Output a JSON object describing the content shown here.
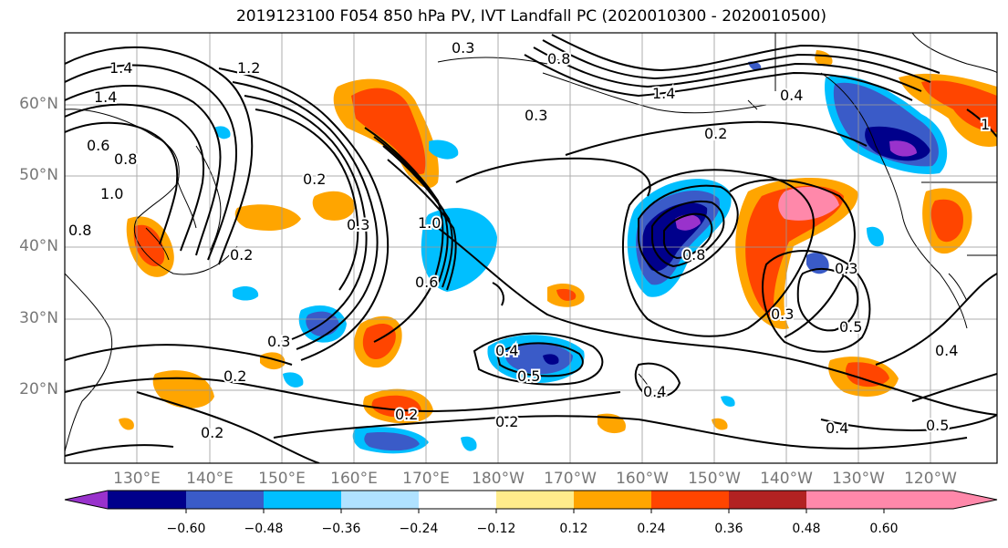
{
  "title": "2019123100 F054 850 hPa PV, IVT Landfall PC (2020010300 - 2020010500)",
  "map": {
    "lat_labels": [
      "60°N",
      "50°N",
      "40°N",
      "30°N",
      "20°N"
    ],
    "lon_labels": [
      "130°E",
      "140°E",
      "150°E",
      "160°E",
      "170°E",
      "180°W",
      "170°W",
      "160°W",
      "150°W",
      "140°W",
      "130°W",
      "120°W"
    ],
    "contour_labels": [
      "0.3",
      "1.2",
      "1.4",
      "1.4",
      "0.6",
      "0.8",
      "1.0",
      "0.8",
      "0.2",
      "0.3",
      "0.2",
      "1.0",
      "0.6",
      "0.3",
      "0.2",
      "0.8",
      "0.4",
      "1.4",
      "0.3",
      "0.2",
      "0.8",
      "0.3",
      "0.5",
      "0.4",
      "0.5",
      "0.4",
      "0.4",
      "0.2",
      "0.2",
      "0.3",
      "0.2",
      "0.5",
      "0.4",
      "1"
    ]
  },
  "colorbar": {
    "colors": [
      "#9932CC",
      "#00008B",
      "#3A5BC8",
      "#00BFFF",
      "#B0E2FF",
      "#FFFFFF",
      "#FFEC8B",
      "#FFA500",
      "#FF4500",
      "#B22222",
      "#FF88AA"
    ],
    "tick_labels": [
      "−0.60",
      "−0.48",
      "−0.36",
      "−0.24",
      "−0.12",
      "0.12",
      "0.24",
      "0.36",
      "0.48",
      "0.60"
    ]
  }
}
